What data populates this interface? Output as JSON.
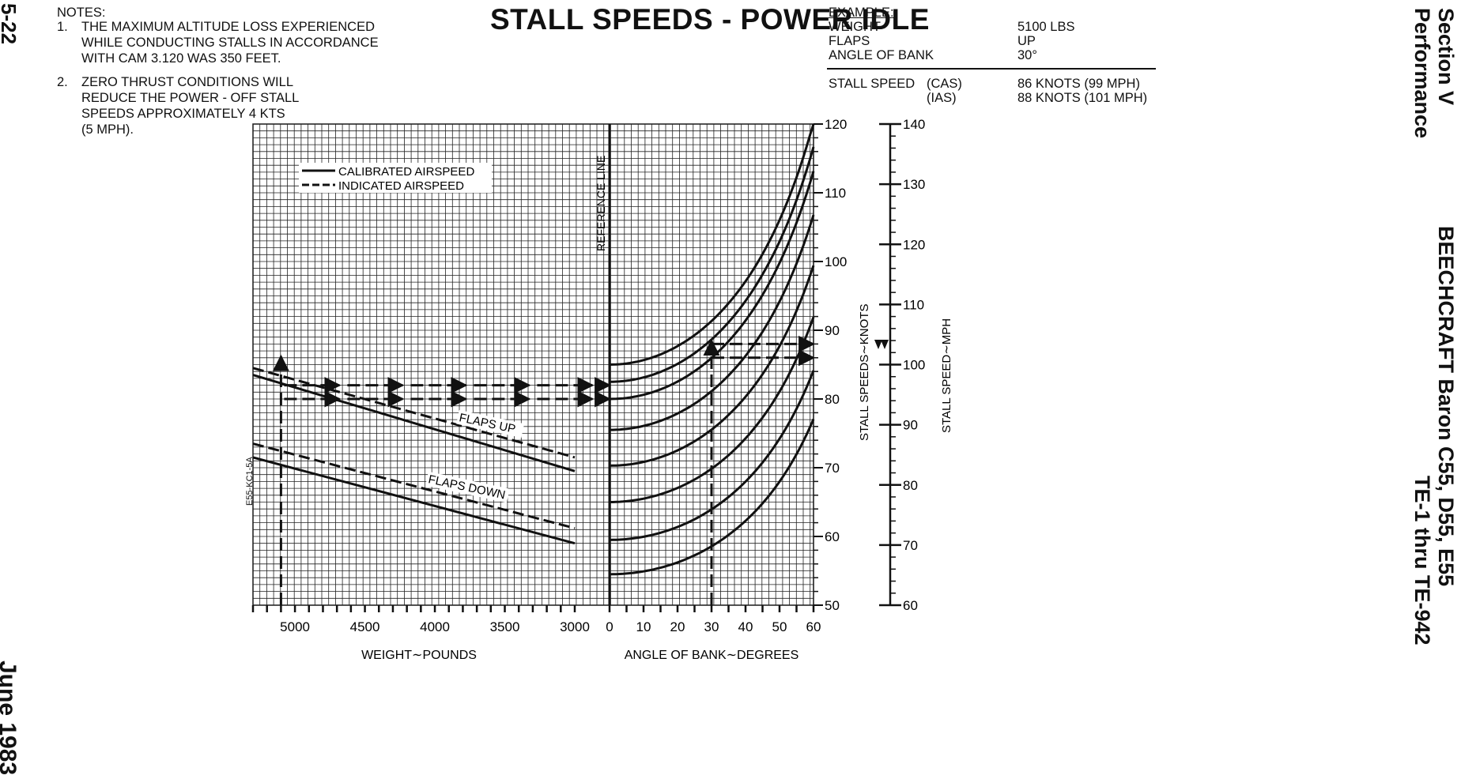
{
  "header": {
    "title": "STALL SPEEDS - POWER IDLE",
    "page_number": "5-22",
    "date": "June 1983",
    "section": "Section V",
    "section_name": "Performance",
    "aircraft": "BEECHCRAFT Baron C55, D55, E55",
    "serials": "TE-1 thru TE-942"
  },
  "notes": {
    "heading": "NOTES:",
    "items": [
      {
        "num": "1.",
        "lines": [
          "THE MAXIMUM ALTITUDE LOSS EXPERIENCED",
          "WHILE CONDUCTING STALLS IN ACCORDANCE",
          "WITH CAM 3.120 WAS 350 FEET."
        ]
      },
      {
        "num": "2.",
        "lines": [
          "ZERO THRUST CONDITIONS WILL",
          "REDUCE THE POWER - OFF STALL",
          "SPEEDS APPROXIMATELY 4 KTS",
          "(5 MPH)."
        ]
      }
    ]
  },
  "example": {
    "heading": "EXAMPLE:",
    "rows": [
      {
        "label": "WEIGHT",
        "value": "5100 LBS"
      },
      {
        "label": "FLAPS",
        "value": "UP"
      },
      {
        "label": "ANGLE OF BANK",
        "value": "30°"
      }
    ],
    "stall_label": "STALL SPEED",
    "results": [
      {
        "kind": "(CAS)",
        "value": "86 KNOTS (99 MPH)"
      },
      {
        "kind": "(IAS)",
        "value": "88 KNOTS (101 MPH)"
      }
    ]
  },
  "chart_data": {
    "type": "line",
    "figure_id": "E55-KC1-5A",
    "legend": {
      "placement": "top-left",
      "entries": [
        {
          "name": "CALIBRATED AIRSPEED",
          "style": "solid"
        },
        {
          "name": "INDICATED AIRSPEED",
          "style": "dashed"
        }
      ]
    },
    "reference_line_label": "REFERENCE LINE",
    "weight_panel": {
      "xlabel": "WEIGHT∼POUNDS",
      "xlim": [
        5300,
        3000
      ],
      "xticks": [
        "5000",
        "4500",
        "4000",
        "3500",
        "3000"
      ],
      "labels": [
        "FLAPS UP",
        "FLAPS DOWN"
      ],
      "series": [
        {
          "name": "FLAPS UP",
          "style": "dashed",
          "x": [
            5300,
            3000
          ],
          "y": [
            84.5,
            71.5
          ]
        },
        {
          "name": "FLAPS UP",
          "style": "solid",
          "x": [
            5300,
            3000
          ],
          "y": [
            83.5,
            69.5
          ]
        },
        {
          "name": "FLAPS DOWN",
          "style": "dashed",
          "x": [
            5300,
            3000
          ],
          "y": [
            73.5,
            61.2
          ]
        },
        {
          "name": "FLAPS DOWN",
          "style": "solid",
          "x": [
            5300,
            3000
          ],
          "y": [
            71.5,
            59.0
          ]
        }
      ]
    },
    "bank_panel": {
      "xlabel": "ANGLE OF BANK∼DEGREES",
      "xlim": [
        0,
        60
      ],
      "xticks": [
        "0",
        "10",
        "20",
        "30",
        "40",
        "50",
        "60"
      ],
      "curves_at_zero_bank": [
        54.5,
        59.5,
        65.0,
        70.3,
        75.5,
        80.0,
        82.5,
        85.0
      ]
    },
    "example_path": {
      "weight": 5100,
      "bank": 30,
      "cas_knots": 86,
      "ias_knots": 88
    },
    "y_axes": {
      "knots": {
        "label": "STALL SPEEDS∼KNOTS",
        "ylim": [
          50,
          120
        ],
        "ticks": [
          "50",
          "60",
          "70",
          "80",
          "90",
          "100",
          "110",
          "120"
        ]
      },
      "mph": {
        "label": "STALL SPEED∼MPH",
        "ylim": [
          60,
          140
        ],
        "ticks": [
          "60",
          "70",
          "80",
          "90",
          "100",
          "110",
          "120",
          "130",
          "140"
        ]
      }
    }
  }
}
